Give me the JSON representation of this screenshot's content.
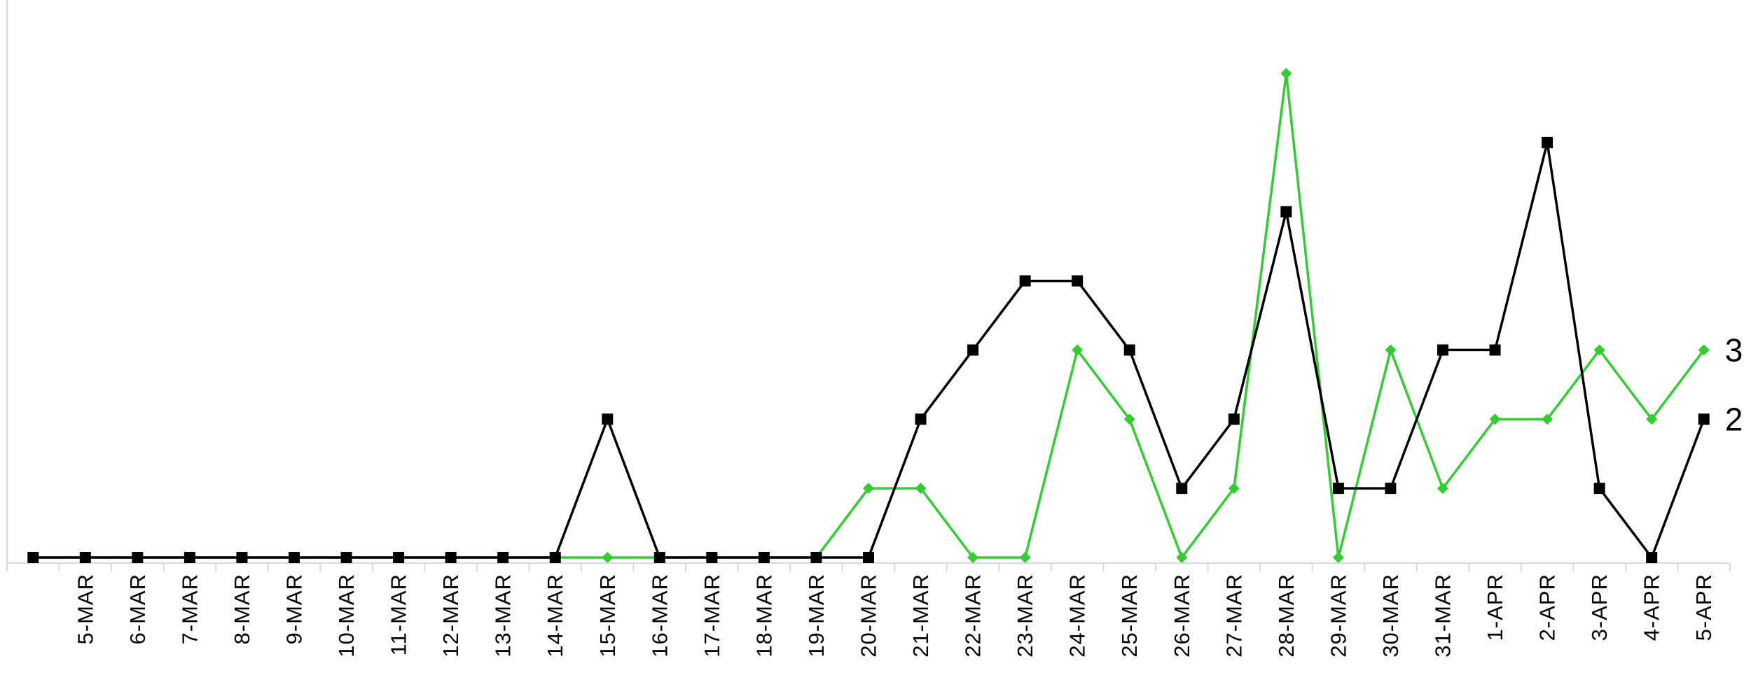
{
  "chart_data": {
    "type": "line",
    "title": "",
    "xlabel": "",
    "ylabel": "",
    "ylim": [
      0,
      7
    ],
    "grid": false,
    "legend": "none",
    "x": [
      "",
      "5-MAR",
      "6-MAR",
      "7-MAR",
      "8-MAR",
      "9-MAR",
      "10-MAR",
      "11-MAR",
      "12-MAR",
      "13-MAR",
      "14-MAR",
      "15-MAR",
      "16-MAR",
      "17-MAR",
      "18-MAR",
      "19-MAR",
      "20-MAR",
      "21-MAR",
      "22-MAR",
      "23-MAR",
      "24-MAR",
      "25-MAR",
      "26-MAR",
      "27-MAR",
      "28-MAR",
      "29-MAR",
      "30-MAR",
      "31-MAR",
      "1-APR",
      "2-APR",
      "3-APR",
      "4-APR",
      "5-APR"
    ],
    "series": [
      {
        "color": "#33cc33",
        "marker": "diamond",
        "values": [
          0,
          0,
          0,
          0,
          0,
          0,
          0,
          0,
          0,
          0,
          0,
          0,
          0,
          0,
          0,
          0,
          1,
          1,
          0,
          0,
          3,
          2,
          0,
          1,
          7,
          0,
          3,
          1,
          2,
          2,
          3,
          2,
          3
        ],
        "end_label": "3"
      },
      {
        "color": "#000000",
        "marker": "square",
        "values": [
          0,
          0,
          0,
          0,
          0,
          0,
          0,
          0,
          0,
          0,
          0,
          2,
          0,
          0,
          0,
          0,
          0,
          2,
          3,
          4,
          4,
          3,
          1,
          2,
          5,
          1,
          1,
          3,
          3,
          6,
          1,
          0,
          2
        ],
        "end_label": "2"
      }
    ]
  }
}
